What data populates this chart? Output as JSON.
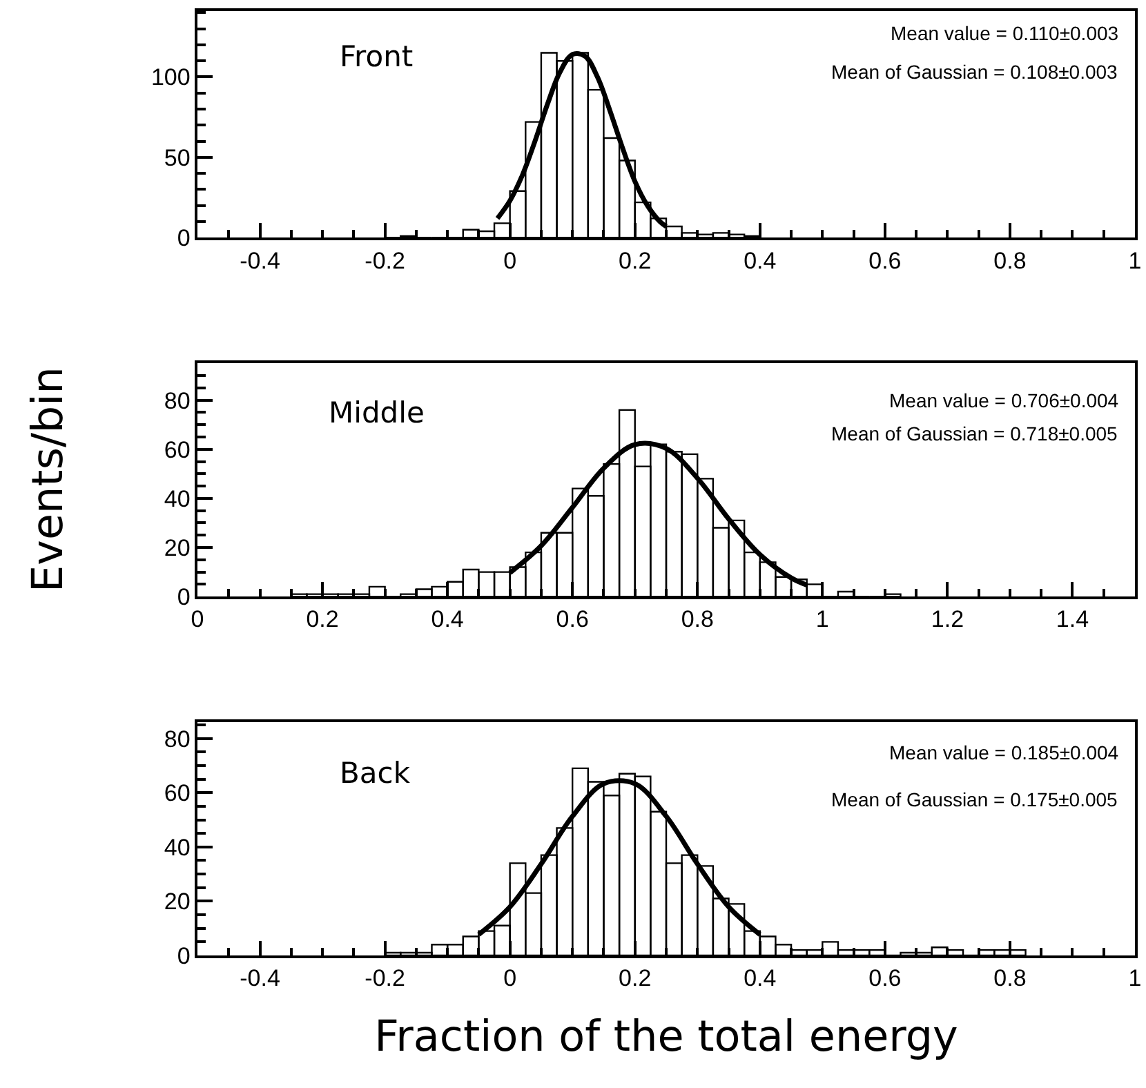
{
  "chart_data": [
    {
      "type": "histogram",
      "color": "#000000",
      "grid": false,
      "annotations": [
        "Front",
        "Mean value = 0.110±0.003",
        "Mean of Gaussian = 0.108±0.003"
      ],
      "bins": [
        -0.2,
        -0.175,
        -0.15,
        -0.125,
        -0.1,
        -0.075,
        -0.05,
        -0.025,
        0,
        0.025,
        0.05,
        0.075,
        0.1,
        0.125,
        0.15,
        0.175,
        0.2,
        0.225,
        0.25,
        0.275,
        0.3,
        0.325,
        0.35,
        0.375,
        0.4
      ],
      "values": [
        0,
        1,
        0,
        0,
        0,
        5,
        4,
        9,
        29,
        72,
        115,
        110,
        115,
        92,
        62,
        48,
        22,
        12,
        7,
        3,
        2,
        3,
        2,
        1
      ],
      "series": [
        {
          "type": "line",
          "color": "#000000",
          "x": [
            -0.02,
            0,
            0.02,
            0.04,
            0.06,
            0.08,
            0.1,
            0.12,
            0.14,
            0.16,
            0.18,
            0.2,
            0.22,
            0.24,
            0.25
          ],
          "values": [
            12,
            23,
            39,
            60,
            83,
            103,
            114,
            113,
            100,
            79,
            56,
            35,
            20,
            10,
            7
          ]
        }
      ],
      "xlim": [
        -0.5,
        1
      ],
      "xticks": [
        -0.4,
        -0.2,
        0,
        0.2,
        0.4,
        0.6,
        0.8,
        1
      ],
      "ylim": [
        0,
        141
      ],
      "yticks": [
        0,
        50,
        100
      ]
    },
    {
      "type": "histogram",
      "color": "#000000",
      "grid": false,
      "ylabel": "Events/bin",
      "annotations": [
        "Middle",
        "Mean value = 0.706±0.004",
        "Mean of Gaussian = 0.718±0.005"
      ],
      "bins": [
        0.15,
        0.175,
        0.2,
        0.225,
        0.25,
        0.275,
        0.3,
        0.325,
        0.35,
        0.375,
        0.4,
        0.425,
        0.45,
        0.475,
        0.5,
        0.525,
        0.55,
        0.575,
        0.6,
        0.625,
        0.65,
        0.675,
        0.7,
        0.725,
        0.75,
        0.775,
        0.8,
        0.825,
        0.85,
        0.875,
        0.9,
        0.925,
        0.95,
        0.975,
        1,
        1.025,
        1.05,
        1.075,
        1.1,
        1.125
      ],
      "values": [
        1,
        1,
        1,
        1,
        1,
        4,
        0,
        1,
        3,
        4,
        6,
        11,
        10,
        10,
        12,
        18,
        26,
        26,
        44,
        41,
        54,
        76,
        53,
        62,
        59,
        58,
        48,
        28,
        31,
        18,
        14,
        8,
        7,
        5,
        0,
        2,
        0,
        0,
        1
      ],
      "series": [
        {
          "type": "line",
          "color": "#000000",
          "x": [
            0.5,
            0.55,
            0.6,
            0.65,
            0.7,
            0.75,
            0.8,
            0.85,
            0.9,
            0.95,
            0.975
          ],
          "values": [
            9.7,
            20.7,
            36.3,
            52.3,
            61.9,
            60.3,
            48.2,
            31.6,
            17.1,
            7.6,
            4.7
          ]
        }
      ],
      "xlim": [
        0,
        1.5
      ],
      "xticks": [
        0,
        0.2,
        0.4,
        0.6,
        0.8,
        1,
        1.2,
        1.4
      ],
      "ylim": [
        0,
        95
      ],
      "yticks": [
        0,
        20,
        40,
        60,
        80
      ]
    },
    {
      "type": "histogram",
      "color": "#000000",
      "grid": false,
      "xlabel": "Fraction of the total energy",
      "annotations": [
        "Back",
        "Mean value = 0.185±0.004",
        "Mean of Gaussian = 0.175±0.005"
      ],
      "bins": [
        -0.2,
        -0.175,
        -0.15,
        -0.125,
        -0.1,
        -0.075,
        -0.05,
        -0.025,
        0,
        0.025,
        0.05,
        0.075,
        0.1,
        0.125,
        0.15,
        0.175,
        0.2,
        0.225,
        0.25,
        0.275,
        0.3,
        0.325,
        0.35,
        0.375,
        0.4,
        0.425,
        0.45,
        0.475,
        0.5,
        0.525,
        0.55,
        0.575,
        0.6,
        0.625,
        0.65,
        0.675,
        0.7,
        0.725,
        0.75,
        0.775,
        0.8,
        0.825
      ],
      "values": [
        1,
        1,
        1,
        4,
        4,
        7,
        9,
        11,
        34,
        23,
        37,
        47,
        69,
        64,
        59,
        67,
        66,
        53,
        34,
        37,
        33,
        21,
        19,
        9,
        7,
        4,
        2,
        2,
        5,
        2,
        2,
        2,
        0,
        1,
        1,
        3,
        2,
        0,
        2,
        2,
        2
      ],
      "series": [
        {
          "type": "line",
          "color": "#000000",
          "x": [
            -0.05,
            0,
            0.05,
            0.1,
            0.15,
            0.2,
            0.25,
            0.3,
            0.35,
            0.4
          ],
          "values": [
            7.7,
            17.9,
            33.7,
            51.3,
            63.3,
            63.3,
            51.3,
            33.7,
            17.9,
            7.7
          ]
        }
      ],
      "xlim": [
        -0.5,
        1
      ],
      "xticks": [
        -0.4,
        -0.2,
        0,
        0.2,
        0.4,
        0.6,
        0.8,
        1
      ],
      "ylim": [
        0,
        86
      ],
      "yticks": [
        0,
        20,
        40,
        60,
        80
      ]
    }
  ]
}
